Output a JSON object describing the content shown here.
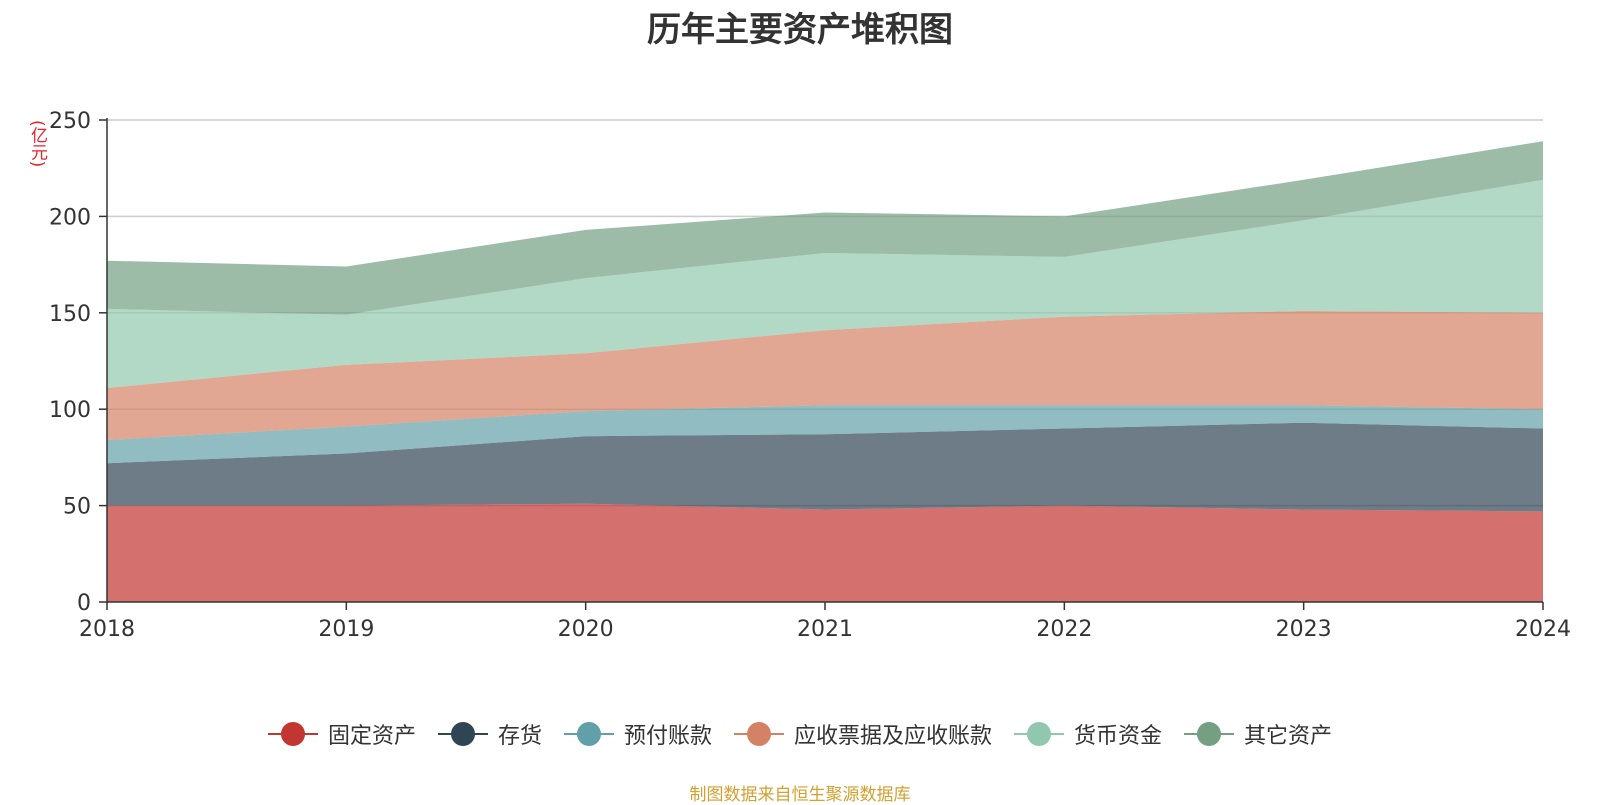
{
  "chart_data": {
    "type": "area",
    "stacked": true,
    "title": "历年主要资产堆积图",
    "unit_label": "(亿元)",
    "x": [
      "2018",
      "2019",
      "2020",
      "2021",
      "2022",
      "2023",
      "2024"
    ],
    "ylim": [
      0,
      250
    ],
    "yticks": [
      "0",
      "50",
      "100",
      "150",
      "200",
      "250"
    ],
    "grid": true,
    "legend_position": "bottom",
    "series": [
      {
        "name": "固定资产",
        "color": "#c23531",
        "values": [
          50,
          50,
          51,
          48,
          50,
          48,
          47
        ]
      },
      {
        "name": "存货",
        "color": "#2f4554",
        "values": [
          22,
          27,
          35,
          39,
          40,
          45,
          43
        ]
      },
      {
        "name": "预付账款",
        "color": "#61a0a8",
        "values": [
          12,
          14,
          13,
          15,
          12,
          9,
          10
        ]
      },
      {
        "name": "应收票据及应收账款",
        "color": "#d48265",
        "values": [
          27,
          32,
          30,
          39,
          46,
          49,
          50
        ]
      },
      {
        "name": "货币资金",
        "color": "#91c7ae",
        "values": [
          41,
          26,
          39,
          40,
          31,
          47,
          69
        ]
      },
      {
        "name": "其它资产",
        "color": "#749f83",
        "values": [
          25,
          25,
          25,
          21,
          21,
          21,
          20
        ]
      }
    ]
  },
  "source_note": "制图数据来自恒生聚源数据库"
}
